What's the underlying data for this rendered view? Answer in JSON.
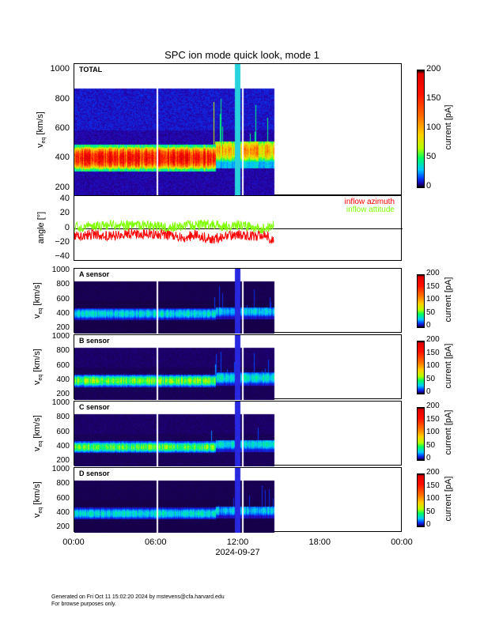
{
  "chart_data": {
    "type": "heatmap",
    "title": "SPC ion mode quick look, mode 1",
    "x_axis": {
      "ticks": [
        "00:00",
        "06:00",
        "12:00",
        "18:00",
        "00:00"
      ],
      "tick_hours": [
        0,
        6,
        12,
        18,
        24
      ],
      "date_label": "2024-09-27",
      "range_hours": [
        0,
        24
      ],
      "data_end_hour": 14.6,
      "gaps_hours": [
        6.05,
        12.3
      ],
      "anomaly_column_hours": [
        11.7,
        12.1
      ]
    },
    "colorbar": {
      "label": "current [pA]",
      "ticks": [
        "0",
        "50",
        "100",
        "150",
        "200"
      ],
      "tick_values": [
        0,
        50,
        100,
        150,
        200
      ],
      "range": [
        0,
        200
      ]
    },
    "velocity_axis": {
      "label": "v",
      "subscript": "eq",
      "unit": " [km/s]",
      "ticks": [
        "200",
        "400",
        "600",
        "800",
        "1000"
      ],
      "tick_values": [
        200,
        400,
        600,
        800,
        1000
      ],
      "range": [
        150,
        1045
      ],
      "data_top": 880
    },
    "panels": [
      {
        "name": "TOTAL",
        "background_pA": 8,
        "segments": [
          {
            "t0": 0,
            "t1": 10.3,
            "vlo": 320,
            "vhi": 500,
            "vpeak": 410,
            "peak_pA": 160
          },
          {
            "t0": 10.3,
            "t1": 14.6,
            "vlo": 340,
            "vhi": 520,
            "vpeak": 460,
            "peak_pA": 95
          }
        ]
      },
      {
        "name": "A sensor",
        "background_pA": 1,
        "segments": [
          {
            "t0": 0,
            "t1": 10.3,
            "vlo": 340,
            "vhi": 500,
            "vpeak": 430,
            "peak_pA": 35
          },
          {
            "t0": 10.3,
            "t1": 14.6,
            "vlo": 350,
            "vhi": 520,
            "vpeak": 460,
            "peak_pA": 30
          }
        ]
      },
      {
        "name": "B sensor",
        "background_pA": 2,
        "segments": [
          {
            "t0": 0,
            "t1": 10.3,
            "vlo": 330,
            "vhi": 500,
            "vpeak": 420,
            "peak_pA": 60
          },
          {
            "t0": 10.3,
            "t1": 14.6,
            "vlo": 350,
            "vhi": 540,
            "vpeak": 460,
            "peak_pA": 35
          }
        ]
      },
      {
        "name": "C sensor",
        "background_pA": 2,
        "segments": [
          {
            "t0": 0,
            "t1": 10.3,
            "vlo": 340,
            "vhi": 500,
            "vpeak": 420,
            "peak_pA": 55
          },
          {
            "t0": 10.3,
            "t1": 14.6,
            "vlo": 350,
            "vhi": 520,
            "vpeak": 460,
            "peak_pA": 35
          }
        ]
      },
      {
        "name": "D sensor",
        "background_pA": 1,
        "segments": [
          {
            "t0": 0,
            "t1": 10.3,
            "vlo": 340,
            "vhi": 500,
            "vpeak": 420,
            "peak_pA": 35
          },
          {
            "t0": 10.3,
            "t1": 14.6,
            "vlo": 350,
            "vhi": 520,
            "vpeak": 460,
            "peak_pA": 30
          }
        ]
      }
    ],
    "angle": {
      "ylabel": "angle [°]",
      "ticks": [
        "40",
        "20",
        "0",
        "−20",
        "−40"
      ],
      "tick_values": [
        40,
        20,
        0,
        -20,
        -40
      ],
      "range": [
        -45,
        45
      ],
      "series": [
        {
          "name": "inflow azimuth",
          "color": "#ff0000",
          "hours": [
            0,
            1,
            2,
            3,
            4,
            5,
            6,
            7,
            8,
            9,
            10,
            11,
            12,
            13,
            14,
            14.6
          ],
          "values": [
            -10,
            -8,
            -9,
            -10,
            -6,
            -8,
            -7,
            -9,
            -12,
            -8,
            -15,
            -10,
            -8,
            -10,
            -8,
            -18
          ]
        },
        {
          "name": "inflow attitude",
          "color": "#80ff00",
          "hours": [
            0,
            1,
            2,
            3,
            4,
            5,
            6,
            7,
            8,
            9,
            10,
            11,
            12,
            13,
            14,
            14.6
          ],
          "values": [
            2,
            3,
            4,
            5,
            4,
            5,
            3,
            2,
            4,
            5,
            6,
            3,
            5,
            2,
            0,
            8
          ]
        }
      ]
    }
  },
  "footer": {
    "line1": "Generated on Fri Oct 11 15:02:20 2024 by mstevens@cfa.harvard.edu",
    "line2": "For browse purposes only."
  }
}
